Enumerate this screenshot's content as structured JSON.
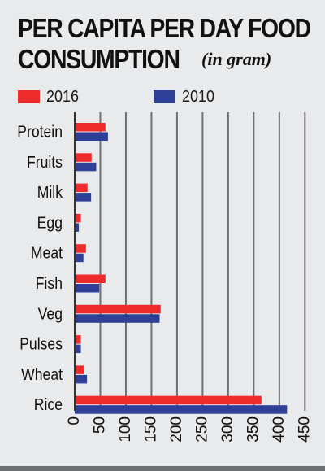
{
  "title": {
    "line1": "PER CAPITA PER DAY FOOD",
    "line2": "CONSUMPTION",
    "unit_note": "(in gram)"
  },
  "colors": {
    "series_2016": "#ee2b2b",
    "series_2010": "#2d3f97",
    "grid": "#6f7073",
    "axis": "#333333",
    "text": "#111111",
    "background": "#e9eaec"
  },
  "legend": {
    "items": [
      {
        "label": "2016",
        "color": "#ee2b2b"
      },
      {
        "label": "2010",
        "color": "#2d3f97"
      }
    ]
  },
  "chart_data": {
    "type": "bar",
    "orientation": "horizontal",
    "title": "PER CAPITA PER DAY FOOD CONSUMPTION (in gram)",
    "xlabel": "",
    "ylabel": "",
    "categories": [
      "Protein",
      "Fruits",
      "Milk",
      "Egg",
      "Meat",
      "Fish",
      "Veg",
      "Pulses",
      "Wheat",
      "Rice"
    ],
    "series": [
      {
        "name": "2016",
        "color": "#ee2b2b",
        "values": [
          60,
          33,
          25,
          12,
          22,
          60,
          168,
          12,
          18,
          365
        ]
      },
      {
        "name": "2010",
        "color": "#2d3f97",
        "values": [
          65,
          42,
          32,
          8,
          17,
          48,
          166,
          12,
          24,
          415
        ]
      }
    ],
    "xlim": [
      0,
      450
    ],
    "xticks": [
      0,
      50,
      100,
      150,
      200,
      250,
      300,
      350,
      400,
      450
    ],
    "grid": true,
    "legend_position": "top-left"
  }
}
